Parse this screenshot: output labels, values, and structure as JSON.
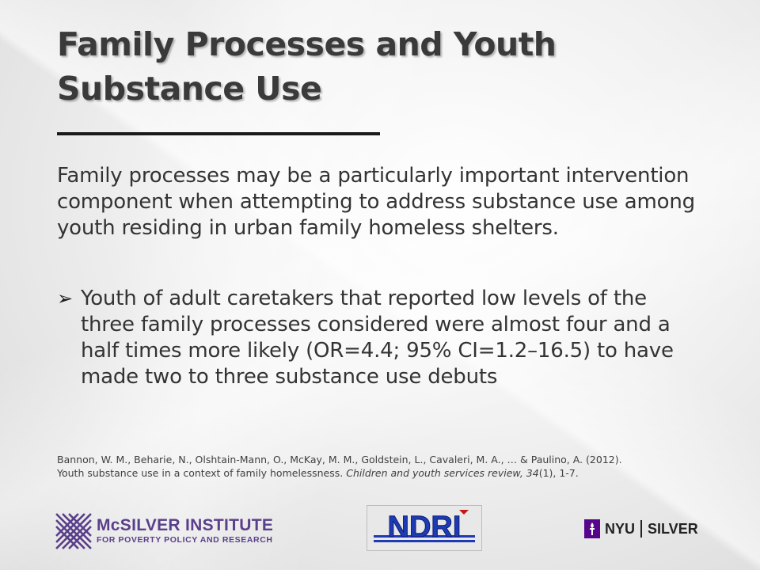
{
  "slide": {
    "title": "Family Processes and Youth Substance Use",
    "body": "Family processes may be a particularly important intervention component when attempting to address substance use among youth residing in urban family homeless shelters.",
    "bullet_glyph": "➢",
    "bullet": "Youth of adult caretakers that reported low levels of the three family processes considered were almost four and a half times more likely (OR=4.4; 95% CI=1.2–16.5) to have made two to three substance use debuts",
    "citation": {
      "authors": "Bannon, W. M., Beharie, N., Olshtain-Mann, O., McKay, M. M., Goldstein, L., Cavaleri, M. A., … & Paulino, A. (2012).",
      "title": "Youth substance use in a context of family homelessness.",
      "journal": "Children and youth services review,",
      "volume": "34",
      "issue_pages": "(1), 1-7."
    }
  },
  "logos": {
    "mcsilver_name": "McSILVER INSTITUTE",
    "mcsilver_sub": "FOR POVERTY POLICY AND RESEARCH",
    "ndri_text": "NDRI",
    "nyu_word": "NYU",
    "silver_word": "SILVER"
  },
  "colors": {
    "mcsilver_purple": "#5a3f8a",
    "nyu_purple": "#57068c",
    "ndri_blue": "#1f3bb3"
  }
}
